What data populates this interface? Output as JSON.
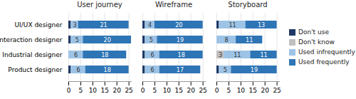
{
  "chart_data": [
    {
      "type": "bar",
      "title": "User journey",
      "orientation": "horizontal",
      "stacked": true,
      "data_labels": true,
      "grid": true,
      "legend": "right",
      "categories": [
        "UI/UX designer",
        "Interaction designer",
        "Industrial designer",
        "Product designer"
      ],
      "series": [
        {
          "name": "Don't use",
          "color": "#1f3864",
          "values": [
            1,
            1,
            0,
            1
          ]
        },
        {
          "name": "Don't know",
          "color": "#c0bfbf",
          "values": [
            0,
            0,
            0,
            0
          ]
        },
        {
          "name": "Used infrequently",
          "color": "#9dc3e6",
          "values": [
            3,
            5,
            6,
            6
          ]
        },
        {
          "name": "Used frequently",
          "color": "#2e75b6",
          "values": [
            21,
            20,
            18,
            18
          ]
        }
      ],
      "xlim": [
        0,
        26
      ],
      "xticks": [
        0,
        5,
        10,
        15,
        20,
        25
      ]
    },
    {
      "type": "bar",
      "title": "Wireframe",
      "orientation": "horizontal",
      "stacked": true,
      "data_labels": true,
      "grid": true,
      "legend": "right",
      "tick_labels": "x",
      "categories": [
        "UI/UX designer",
        "Interaction designer",
        "Industrial designer",
        "Product designer"
      ],
      "series": [
        {
          "name": "Don't use",
          "color": "#1f3864",
          "values": [
            1,
            1,
            1,
            1
          ]
        },
        {
          "name": "Don't know",
          "color": "#c0bfbf",
          "values": [
            0,
            0,
            0,
            0
          ]
        },
        {
          "name": "Used infrequently",
          "color": "#9dc3e6",
          "values": [
            4,
            5,
            6,
            6
          ]
        },
        {
          "name": "Used frequently",
          "color": "#2e75b6",
          "values": [
            20,
            19,
            18,
            17
          ]
        }
      ],
      "xlim": [
        0,
        26
      ],
      "xticks": [
        0,
        5,
        10,
        15,
        20,
        25
      ]
    },
    {
      "type": "bar",
      "title": "Storyboard",
      "orientation": "horizontal",
      "stacked": true,
      "data_labels": true,
      "grid": true,
      "legend": "right",
      "tick_labels": "x",
      "categories": [
        "UI/UX designer",
        "Interaction designer",
        "Industrial designer",
        "Product designer"
      ],
      "series": [
        {
          "name": "Don't use",
          "color": "#1f3864",
          "values": [
            1,
            0,
            0,
            1
          ]
        },
        {
          "name": "Don't know",
          "color": "#c0bfbf",
          "values": [
            0,
            0,
            3,
            0
          ]
        },
        {
          "name": "Used infrequently",
          "color": "#9dc3e6",
          "values": [
            11,
            8,
            11,
            5
          ]
        },
        {
          "name": "Used frequently",
          "color": "#2e75b6",
          "values": [
            13,
            11,
            11,
            19
          ]
        }
      ],
      "xlim": [
        0,
        26
      ],
      "xticks": [
        0,
        5,
        10,
        15,
        20,
        25
      ]
    }
  ]
}
